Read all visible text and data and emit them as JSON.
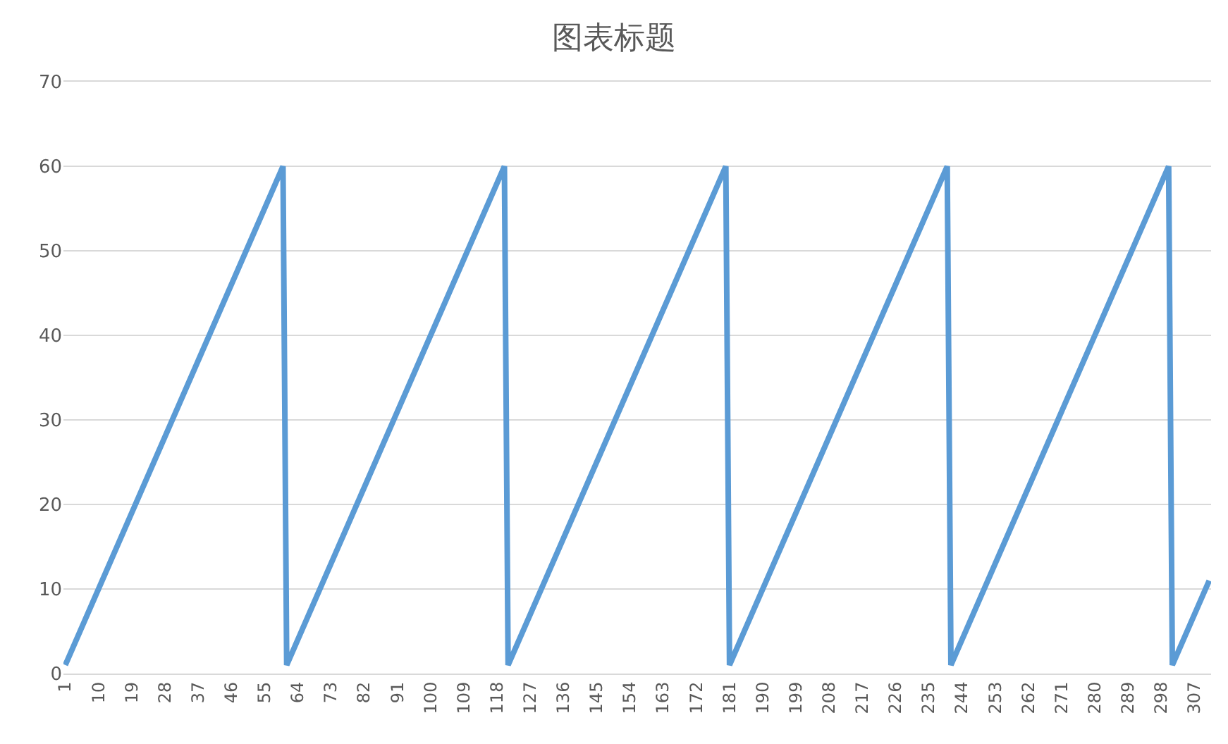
{
  "chart_data": {
    "type": "line",
    "title": "图表标题",
    "categories": [
      "1",
      null,
      null,
      null,
      null,
      null,
      null,
      null,
      null,
      "10",
      null,
      null,
      null,
      null,
      null,
      null,
      null,
      null,
      "19",
      null,
      null,
      null,
      null,
      null,
      null,
      null,
      null,
      "28",
      null,
      null,
      null,
      null,
      null,
      null,
      null,
      null,
      "37",
      null,
      null,
      null,
      null,
      null,
      null,
      null,
      null,
      "46",
      null,
      null,
      null,
      null,
      null,
      null,
      null,
      null,
      "55",
      null,
      null,
      null,
      null,
      null,
      null,
      null,
      null,
      "64",
      null,
      null,
      null,
      null,
      null,
      null,
      null,
      null,
      "73",
      null,
      null,
      null,
      null,
      null,
      null,
      null,
      null,
      "82",
      null,
      null,
      null,
      null,
      null,
      null,
      null,
      null,
      "91",
      null,
      null,
      null,
      null,
      null,
      null,
      null,
      null,
      "100",
      null,
      null,
      null,
      null,
      null,
      null,
      null,
      null,
      "109",
      null,
      null,
      null,
      null,
      null,
      null,
      null,
      null,
      "118",
      null,
      null,
      null,
      null,
      null,
      null,
      null,
      null,
      "127",
      null,
      null,
      null,
      null,
      null,
      null,
      null,
      null,
      "136",
      null,
      null,
      null,
      null,
      null,
      null,
      null,
      null,
      "145",
      null,
      null,
      null,
      null,
      null,
      null,
      null,
      null,
      "154",
      null,
      null,
      null,
      null,
      null,
      null,
      null,
      null,
      "163",
      null,
      null,
      null,
      null,
      null,
      null,
      null,
      null,
      "172",
      null,
      null,
      null,
      null,
      null,
      null,
      null,
      null,
      "181",
      null,
      null,
      null,
      null,
      null,
      null,
      null,
      null,
      "190",
      null,
      null,
      null,
      null,
      null,
      null,
      null,
      null,
      "199",
      null,
      null,
      null,
      null,
      null,
      null,
      null,
      null,
      "208",
      null,
      null,
      null,
      null,
      null,
      null,
      null,
      null,
      "217",
      null,
      null,
      null,
      null,
      null,
      null,
      null,
      null,
      "226",
      null,
      null,
      null,
      null,
      null,
      null,
      null,
      null,
      "235",
      null,
      null,
      null,
      null,
      null,
      null,
      null,
      null,
      "244",
      null,
      null,
      null,
      null,
      null,
      null,
      null,
      null,
      "253",
      null,
      null,
      null,
      null,
      null,
      null,
      null,
      null,
      "262",
      null,
      null,
      null,
      null,
      null,
      null,
      null,
      null,
      "271",
      null,
      null,
      null,
      null,
      null,
      null,
      null,
      null,
      "280",
      null,
      null,
      null,
      null,
      null,
      null,
      null,
      null,
      "289",
      null,
      null,
      null,
      null,
      null,
      null,
      null,
      null,
      "298",
      null,
      null,
      null,
      null,
      null,
      null,
      null,
      null,
      "307",
      null,
      null,
      null,
      null
    ],
    "series": [
      {
        "color": "#5b9bd5",
        "values": [
          1,
          2,
          3,
          4,
          5,
          6,
          7,
          8,
          9,
          10,
          11,
          12,
          13,
          14,
          15,
          16,
          17,
          18,
          19,
          20,
          21,
          22,
          23,
          24,
          25,
          26,
          27,
          28,
          29,
          30,
          31,
          32,
          33,
          34,
          35,
          36,
          37,
          38,
          39,
          40,
          41,
          42,
          43,
          44,
          45,
          46,
          47,
          48,
          49,
          50,
          51,
          52,
          53,
          54,
          55,
          56,
          57,
          58,
          59,
          60,
          1,
          2,
          3,
          4,
          5,
          6,
          7,
          8,
          9,
          10,
          11,
          12,
          13,
          14,
          15,
          16,
          17,
          18,
          19,
          20,
          21,
          22,
          23,
          24,
          25,
          26,
          27,
          28,
          29,
          30,
          31,
          32,
          33,
          34,
          35,
          36,
          37,
          38,
          39,
          40,
          41,
          42,
          43,
          44,
          45,
          46,
          47,
          48,
          49,
          50,
          51,
          52,
          53,
          54,
          55,
          56,
          57,
          58,
          59,
          60,
          1,
          2,
          3,
          4,
          5,
          6,
          7,
          8,
          9,
          10,
          11,
          12,
          13,
          14,
          15,
          16,
          17,
          18,
          19,
          20,
          21,
          22,
          23,
          24,
          25,
          26,
          27,
          28,
          29,
          30,
          31,
          32,
          33,
          34,
          35,
          36,
          37,
          38,
          39,
          40,
          41,
          42,
          43,
          44,
          45,
          46,
          47,
          48,
          49,
          50,
          51,
          52,
          53,
          54,
          55,
          56,
          57,
          58,
          59,
          60,
          1,
          2,
          3,
          4,
          5,
          6,
          7,
          8,
          9,
          10,
          11,
          12,
          13,
          14,
          15,
          16,
          17,
          18,
          19,
          20,
          21,
          22,
          23,
          24,
          25,
          26,
          27,
          28,
          29,
          30,
          31,
          32,
          33,
          34,
          35,
          36,
          37,
          38,
          39,
          40,
          41,
          42,
          43,
          44,
          45,
          46,
          47,
          48,
          49,
          50,
          51,
          52,
          53,
          54,
          55,
          56,
          57,
          58,
          59,
          60,
          1,
          2,
          3,
          4,
          5,
          6,
          7,
          8,
          9,
          10,
          11,
          12,
          13,
          14,
          15,
          16,
          17,
          18,
          19,
          20,
          21,
          22,
          23,
          24,
          25,
          26,
          27,
          28,
          29,
          30,
          31,
          32,
          33,
          34,
          35,
          36,
          37,
          38,
          39,
          40,
          41,
          42,
          43,
          44,
          45,
          46,
          47,
          48,
          49,
          50,
          51,
          52,
          53,
          54,
          55,
          56,
          57,
          58,
          59,
          60,
          1,
          2,
          3,
          4,
          5,
          6,
          7,
          8,
          9,
          10,
          11
        ]
      }
    ],
    "ylim": [
      0,
      70
    ],
    "yticks": [
      0,
      10,
      20,
      30,
      40,
      50,
      60,
      70
    ],
    "grid": "y",
    "marker": "none",
    "line_style": "solid"
  }
}
